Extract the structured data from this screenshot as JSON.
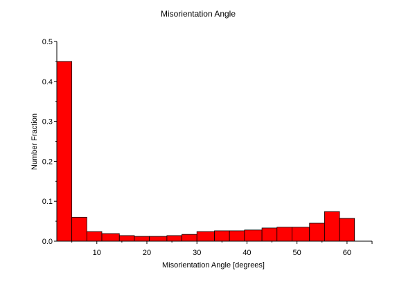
{
  "chart_data": {
    "type": "bar",
    "title": "Misorientation Angle",
    "xlabel": "Misorientation Angle [degrees]",
    "ylabel": "Number Fraction",
    "xlim": [
      2,
      65
    ],
    "ylim": [
      0,
      0.5
    ],
    "x_ticks": [
      10,
      20,
      30,
      40,
      50,
      60
    ],
    "y_ticks": [
      0.0,
      0.1,
      0.2,
      0.3,
      0.4,
      0.5
    ],
    "y_tick_labels": [
      "0.0",
      "0.1",
      "0.2",
      "0.3",
      "0.4",
      "0.5"
    ],
    "grid": false,
    "colors": {
      "bar_fill": "#ff0000",
      "bar_edge": "#000000"
    },
    "bins": [
      {
        "start": 2.0,
        "end": 5.0,
        "value": 0.45
      },
      {
        "start": 5.0,
        "end": 8.0,
        "value": 0.06
      },
      {
        "start": 8.0,
        "end": 11.0,
        "value": 0.024
      },
      {
        "start": 11.0,
        "end": 14.5,
        "value": 0.019
      },
      {
        "start": 14.5,
        "end": 17.5,
        "value": 0.014
      },
      {
        "start": 17.5,
        "end": 20.5,
        "value": 0.012
      },
      {
        "start": 20.5,
        "end": 24.0,
        "value": 0.012
      },
      {
        "start": 24.0,
        "end": 27.0,
        "value": 0.014
      },
      {
        "start": 27.0,
        "end": 30.0,
        "value": 0.017
      },
      {
        "start": 30.0,
        "end": 33.5,
        "value": 0.024
      },
      {
        "start": 33.5,
        "end": 36.5,
        "value": 0.026
      },
      {
        "start": 36.5,
        "end": 39.5,
        "value": 0.026
      },
      {
        "start": 39.5,
        "end": 43.0,
        "value": 0.028
      },
      {
        "start": 43.0,
        "end": 46.0,
        "value": 0.033
      },
      {
        "start": 46.0,
        "end": 49.0,
        "value": 0.035
      },
      {
        "start": 49.0,
        "end": 52.5,
        "value": 0.035
      },
      {
        "start": 52.5,
        "end": 55.5,
        "value": 0.045
      },
      {
        "start": 55.5,
        "end": 58.5,
        "value": 0.074
      },
      {
        "start": 58.5,
        "end": 61.5,
        "value": 0.057
      }
    ]
  }
}
